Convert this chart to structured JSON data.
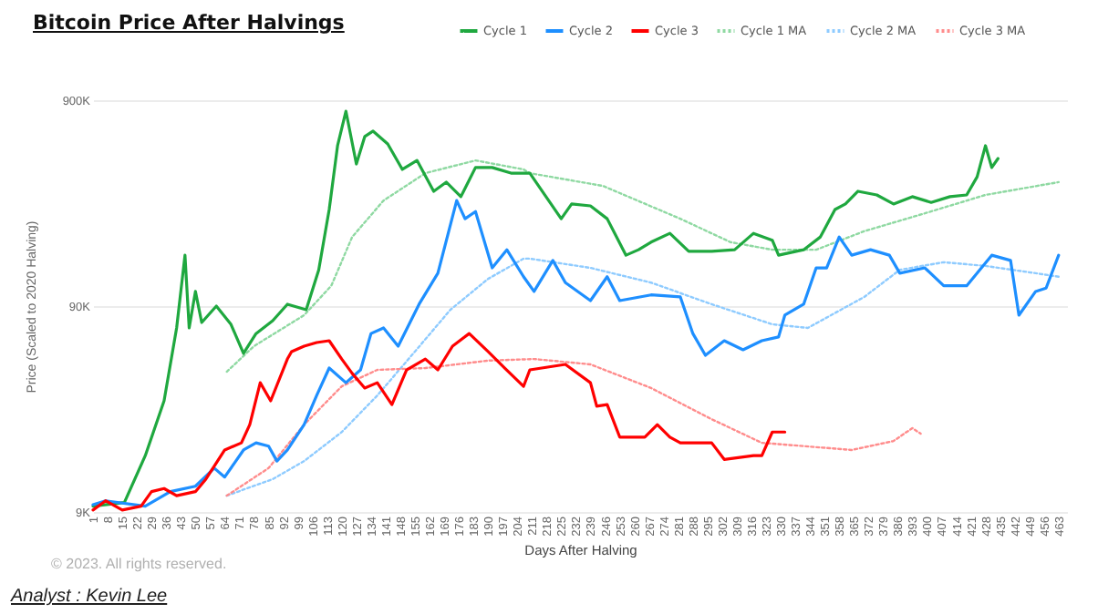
{
  "chart_data": {
    "type": "line",
    "title": "Bitcoin Price After Halvings",
    "xlabel": "Days After Halving",
    "ylabel": "Price (Scaled to 2020 Halving)",
    "annotations": [
      "© 2023. All rights reserved.",
      "Analyst : Kevin Lee"
    ],
    "log": "y",
    "grid": "y",
    "legend": "top right",
    "marker": "none",
    "xlim": [
      1,
      467
    ],
    "xticks": [
      1,
      8,
      15,
      22,
      29,
      36,
      43,
      50,
      57,
      64,
      71,
      78,
      85,
      92,
      99,
      106,
      113,
      120,
      127,
      134,
      141,
      148,
      155,
      162,
      169,
      176,
      183,
      190,
      197,
      204,
      211,
      218,
      225,
      232,
      239,
      246,
      253,
      260,
      267,
      274,
      281,
      288,
      295,
      302,
      309,
      316,
      323,
      330,
      337,
      344,
      351,
      358,
      365,
      372,
      379,
      386,
      393,
      400,
      407,
      414,
      421,
      428,
      435,
      442,
      449,
      456,
      463
    ],
    "ylim": [
      9000,
      900000
    ],
    "yticks": [
      {
        "value": 9000,
        "label": "9K"
      },
      {
        "value": 90000,
        "label": "90K"
      },
      {
        "value": 900000,
        "label": "900K"
      }
    ],
    "series": [
      {
        "name": "Cycle 1",
        "color": "#1fa83f",
        "line_style": "solid",
        "x": [
          1,
          16,
          26,
          35,
          41,
          45,
          47,
          50,
          53,
          60,
          67,
          73,
          79,
          87,
          94,
          103,
          109,
          114,
          118,
          122,
          127,
          131,
          135,
          142,
          149,
          156,
          164,
          170,
          177,
          184,
          192,
          201,
          210,
          225,
          230,
          239,
          247,
          256,
          262,
          268,
          277,
          286,
          297,
          308,
          317,
          326,
          329,
          341,
          349,
          356,
          361,
          367,
          376,
          384,
          393,
          402,
          411,
          419,
          424,
          428,
          431,
          434
        ],
        "values": [
          9600,
          10000,
          16900,
          31200,
          70500,
          159000,
          70500,
          106000,
          74900,
          90000,
          73400,
          53000,
          66200,
          76500,
          91900,
          86400,
          135000,
          265000,
          541000,
          796000,
          441000,
          599000,
          637000,
          552000,
          415000,
          459000,
          325000,
          360000,
          306000,
          424000,
          424000,
          398000,
          398000,
          239000,
          282000,
          276000,
          239000,
          159000,
          169000,
          184000,
          203000,
          166000,
          166000,
          169000,
          203000,
          188000,
          159000,
          169000,
          195000,
          265000,
          282000,
          325000,
          312000,
          282000,
          306000,
          287000,
          306000,
          312000,
          382000,
          541000,
          424000,
          469000
        ]
      },
      {
        "name": "Cycle 2",
        "color": "#1e8fff",
        "line_style": "solid",
        "x": [
          1,
          7,
          26,
          38,
          50,
          59,
          64,
          73,
          79,
          85,
          89,
          94,
          102,
          108,
          114,
          122,
          129,
          134,
          140,
          147,
          157,
          166,
          175,
          179,
          184,
          192,
          199,
          207,
          212,
          221,
          227,
          239,
          247,
          253,
          268,
          282,
          288,
          294,
          303,
          312,
          321,
          329,
          332,
          341,
          347,
          352,
          358,
          364,
          373,
          382,
          387,
          399,
          408,
          419,
          431,
          440,
          444,
          452,
          457,
          463
        ],
        "values": [
          9770,
          10200,
          9600,
          11300,
          12000,
          14700,
          13300,
          18000,
          19500,
          18800,
          15900,
          18000,
          23900,
          33100,
          45000,
          38200,
          44100,
          66200,
          70500,
          57500,
          91900,
          130000,
          293000,
          239000,
          259000,
          138000,
          169000,
          125000,
          106000,
          150000,
          117000,
          95700,
          125000,
          95700,
          102000,
          99700,
          66200,
          51900,
          61100,
          55200,
          61100,
          63700,
          81300,
          91900,
          138000,
          138000,
          195000,
          159000,
          169000,
          159000,
          130000,
          138000,
          113000,
          113000,
          159000,
          150000,
          81300,
          106000,
          110000,
          159000
        ]
      },
      {
        "name": "Cycle 3",
        "color": "#ff0000",
        "line_style": "solid",
        "x": [
          1,
          7,
          15,
          24,
          29,
          35,
          41,
          50,
          55,
          64,
          72,
          76,
          81,
          86,
          94,
          96,
          102,
          108,
          114,
          120,
          125,
          131,
          137,
          144,
          151,
          160,
          166,
          173,
          181,
          190,
          198,
          207,
          210,
          227,
          239,
          242,
          247,
          253,
          265,
          271,
          277,
          282,
          297,
          303,
          317,
          321,
          326,
          332
        ],
        "values": [
          9200,
          10200,
          9200,
          9600,
          11300,
          11700,
          10800,
          11300,
          13000,
          18000,
          19500,
          23900,
          38200,
          31200,
          49800,
          54100,
          57500,
          59900,
          61100,
          49800,
          42400,
          36000,
          38200,
          29900,
          44100,
          49800,
          44100,
          57500,
          66200,
          54100,
          45000,
          36700,
          44100,
          46900,
          38200,
          29400,
          29900,
          20800,
          20800,
          23900,
          20800,
          19500,
          19500,
          16200,
          16900,
          16900,
          22000,
          22000
        ]
      },
      {
        "name": "Cycle 1 MA",
        "color": "#8fd9a2",
        "line_style": "dotted",
        "x": [
          65,
          78,
          102,
          115,
          125,
          140,
          160,
          184,
          207,
          210,
          245,
          282,
          306,
          326,
          347,
          370,
          399,
          428,
          463
        ],
        "values": [
          43200,
          57500,
          81300,
          113000,
          195000,
          293000,
          398000,
          459000,
          415000,
          398000,
          345000,
          239000,
          184000,
          169000,
          169000,
          208000,
          254000,
          312000,
          360000
        ]
      },
      {
        "name": "Cycle 2 MA",
        "color": "#8ecbff",
        "line_style": "dotted",
        "x": [
          65,
          87,
          102,
          120,
          137,
          155,
          172,
          190,
          207,
          210,
          239,
          268,
          297,
          326,
          343,
          370,
          387,
          408,
          428,
          452,
          463
        ],
        "values": [
          10800,
          13000,
          15900,
          22000,
          33100,
          54100,
          86400,
          122000,
          153000,
          153000,
          138000,
          117000,
          91900,
          73400,
          70500,
          99700,
          135000,
          147000,
          141000,
          130000,
          125000
        ]
      },
      {
        "name": "Cycle 3 MA",
        "color": "#ff8c8c",
        "line_style": "dotted",
        "x": [
          65,
          85,
          102,
          120,
          137,
          160,
          190,
          212,
          239,
          268,
          297,
          321,
          341,
          364,
          384,
          393,
          397
        ],
        "values": [
          10800,
          14700,
          23900,
          36700,
          44100,
          45000,
          48900,
          49800,
          46900,
          36000,
          25400,
          19500,
          18800,
          18000,
          19900,
          23000,
          21600
        ]
      }
    ]
  }
}
